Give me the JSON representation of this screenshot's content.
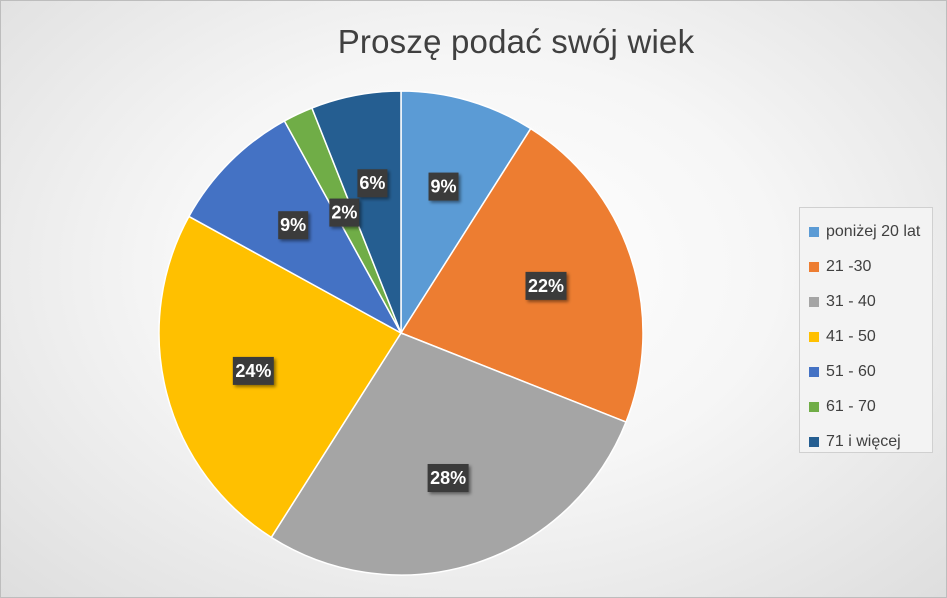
{
  "chart_data": {
    "type": "pie",
    "title": "Proszę podać swój wiek",
    "categories": [
      "poniżej 20 lat",
      "21 -30",
      "31 - 40",
      "41 - 50",
      "51 - 60",
      "61 - 70",
      "71 i więcej"
    ],
    "values": [
      9,
      22,
      28,
      24,
      9,
      2,
      6
    ],
    "data_labels": [
      "9%",
      "22%",
      "28%",
      "24%",
      "9%",
      "2%",
      "6%"
    ],
    "colors": [
      "#5B9BD5",
      "#ED7D31",
      "#A5A5A5",
      "#FFC000",
      "#4472C4",
      "#70AD47",
      "#255E91"
    ],
    "legend_position": "right"
  }
}
